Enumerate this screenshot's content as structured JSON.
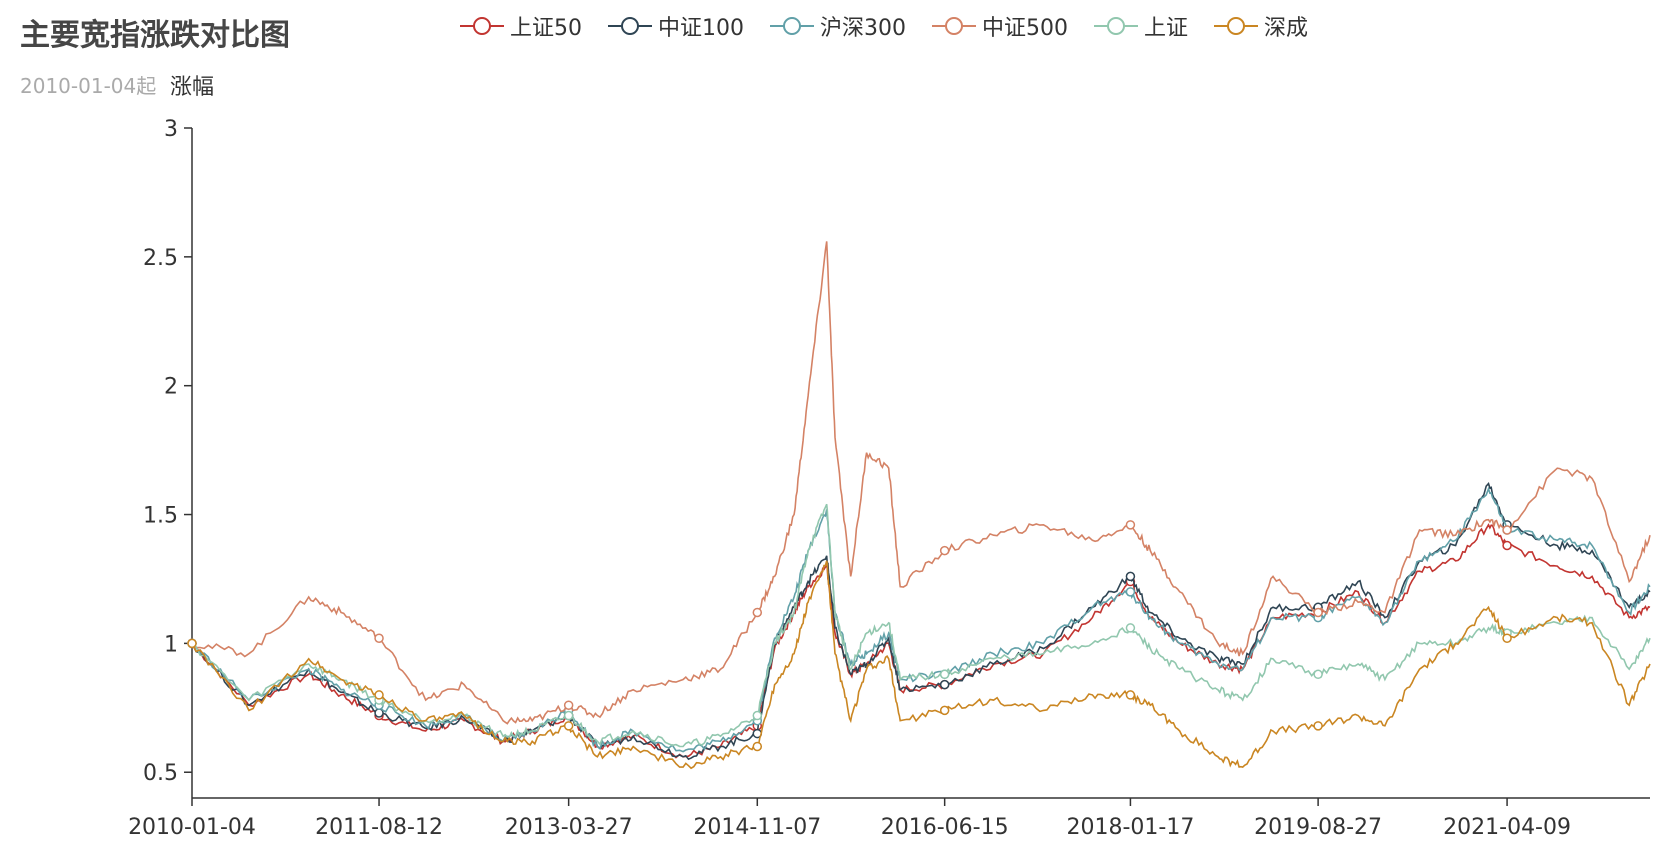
{
  "title": "主要宽指涨跌对比图",
  "subtitle": "2010-01-04起",
  "chart_data": {
    "type": "line",
    "title": "主要宽指涨跌对比图",
    "subtitle": "2010-01-04起",
    "ylabel": "涨幅",
    "xlabel": "",
    "ylim": [
      0.4,
      3
    ],
    "yticks": [
      0.5,
      1,
      1.5,
      2,
      2.5,
      3
    ],
    "x_tick_labels": [
      "2010-01-04",
      "2011-08-12",
      "2013-03-27",
      "2014-11-07",
      "2016-06-15",
      "2018-01-17",
      "2019-08-27",
      "2021-04-09"
    ],
    "x": [
      "2010-01-04",
      "2010-07-01",
      "2011-01-04",
      "2011-04-15",
      "2011-08-12",
      "2012-01-05",
      "2012-05-04",
      "2012-09-03",
      "2012-12-03",
      "2013-03-27",
      "2013-06-25",
      "2013-10-15",
      "2014-03-20",
      "2014-07-15",
      "2014-11-07",
      "2014-12-31",
      "2015-03-02",
      "2015-04-15",
      "2015-06-12",
      "2015-07-08",
      "2015-08-26",
      "2015-10-15",
      "2015-12-23",
      "2016-01-28",
      "2016-06-15",
      "2016-11-15",
      "2017-04-20",
      "2017-09-20",
      "2018-01-17",
      "2018-03-20",
      "2018-06-20",
      "2018-10-18",
      "2019-01-03",
      "2019-04-08",
      "2019-08-27",
      "2019-12-30",
      "2020-03-23",
      "2020-07-09",
      "2020-10-30",
      "2021-02-10",
      "2021-04-09",
      "2021-09-13",
      "2021-12-31",
      "2022-04-26",
      "2022-06-30"
    ],
    "series": [
      {
        "name": "上证50",
        "color": "#c23531",
        "values": [
          1.0,
          0.76,
          0.88,
          0.8,
          0.72,
          0.66,
          0.7,
          0.62,
          0.66,
          0.72,
          0.6,
          0.64,
          0.56,
          0.6,
          0.68,
          0.98,
          1.12,
          1.22,
          1.3,
          1.04,
          0.88,
          0.92,
          1.0,
          0.82,
          0.84,
          0.92,
          0.96,
          1.1,
          1.24,
          1.1,
          1.0,
          0.92,
          0.9,
          1.1,
          1.12,
          1.2,
          1.08,
          1.28,
          1.32,
          1.46,
          1.38,
          1.3,
          1.26,
          1.1,
          1.14
        ]
      },
      {
        "name": "中证100",
        "color": "#2f4554",
        "values": [
          1.0,
          0.76,
          0.9,
          0.81,
          0.73,
          0.67,
          0.71,
          0.62,
          0.66,
          0.72,
          0.6,
          0.64,
          0.56,
          0.6,
          0.65,
          1.0,
          1.14,
          1.24,
          1.34,
          1.06,
          0.88,
          0.92,
          1.02,
          0.82,
          0.84,
          0.92,
          0.98,
          1.14,
          1.26,
          1.12,
          1.02,
          0.94,
          0.92,
          1.14,
          1.14,
          1.24,
          1.1,
          1.32,
          1.38,
          1.62,
          1.46,
          1.38,
          1.36,
          1.14,
          1.2
        ]
      },
      {
        "name": "沪深300",
        "color": "#61a0a8",
        "values": [
          1.0,
          0.78,
          0.9,
          0.82,
          0.76,
          0.68,
          0.72,
          0.62,
          0.66,
          0.74,
          0.6,
          0.66,
          0.58,
          0.62,
          0.7,
          1.02,
          1.18,
          1.36,
          1.52,
          1.12,
          0.92,
          0.96,
          1.04,
          0.86,
          0.88,
          0.96,
          1.0,
          1.14,
          1.2,
          1.1,
          1.0,
          0.92,
          0.9,
          1.1,
          1.1,
          1.18,
          1.08,
          1.32,
          1.4,
          1.6,
          1.44,
          1.4,
          1.38,
          1.12,
          1.22
        ]
      },
      {
        "name": "中证500",
        "color": "#d48265",
        "values": [
          1.0,
          0.96,
          1.18,
          1.12,
          1.02,
          0.78,
          0.84,
          0.7,
          0.7,
          0.76,
          0.72,
          0.82,
          0.86,
          0.9,
          1.12,
          1.26,
          1.5,
          1.96,
          2.56,
          1.8,
          1.26,
          1.74,
          1.68,
          1.22,
          1.36,
          1.42,
          1.46,
          1.4,
          1.46,
          1.36,
          1.2,
          1.0,
          0.96,
          1.26,
          1.12,
          1.16,
          1.12,
          1.44,
          1.42,
          1.48,
          1.44,
          1.68,
          1.64,
          1.24,
          1.42
        ]
      },
      {
        "name": "上证",
        "color": "#91c7ae",
        "values": [
          1.0,
          0.78,
          0.92,
          0.86,
          0.78,
          0.7,
          0.72,
          0.64,
          0.66,
          0.72,
          0.62,
          0.66,
          0.6,
          0.64,
          0.72,
          1.0,
          1.12,
          1.36,
          1.54,
          1.12,
          0.9,
          1.04,
          1.08,
          0.86,
          0.88,
          0.94,
          0.96,
          1.0,
          1.06,
          0.98,
          0.9,
          0.82,
          0.78,
          0.94,
          0.88,
          0.92,
          0.86,
          1.0,
          1.0,
          1.06,
          1.04,
          1.08,
          1.1,
          0.9,
          1.02
        ]
      },
      {
        "name": "深成",
        "color": "#ca8622",
        "values": [
          1.0,
          0.74,
          0.94,
          0.86,
          0.8,
          0.7,
          0.72,
          0.62,
          0.62,
          0.68,
          0.56,
          0.6,
          0.52,
          0.56,
          0.6,
          0.84,
          0.96,
          1.16,
          1.32,
          0.96,
          0.7,
          0.9,
          0.94,
          0.7,
          0.74,
          0.78,
          0.74,
          0.8,
          0.8,
          0.76,
          0.66,
          0.56,
          0.52,
          0.66,
          0.68,
          0.72,
          0.68,
          0.9,
          1.0,
          1.14,
          1.02,
          1.1,
          1.08,
          0.76,
          0.92
        ]
      }
    ],
    "legend_position": "top",
    "grid": false
  }
}
